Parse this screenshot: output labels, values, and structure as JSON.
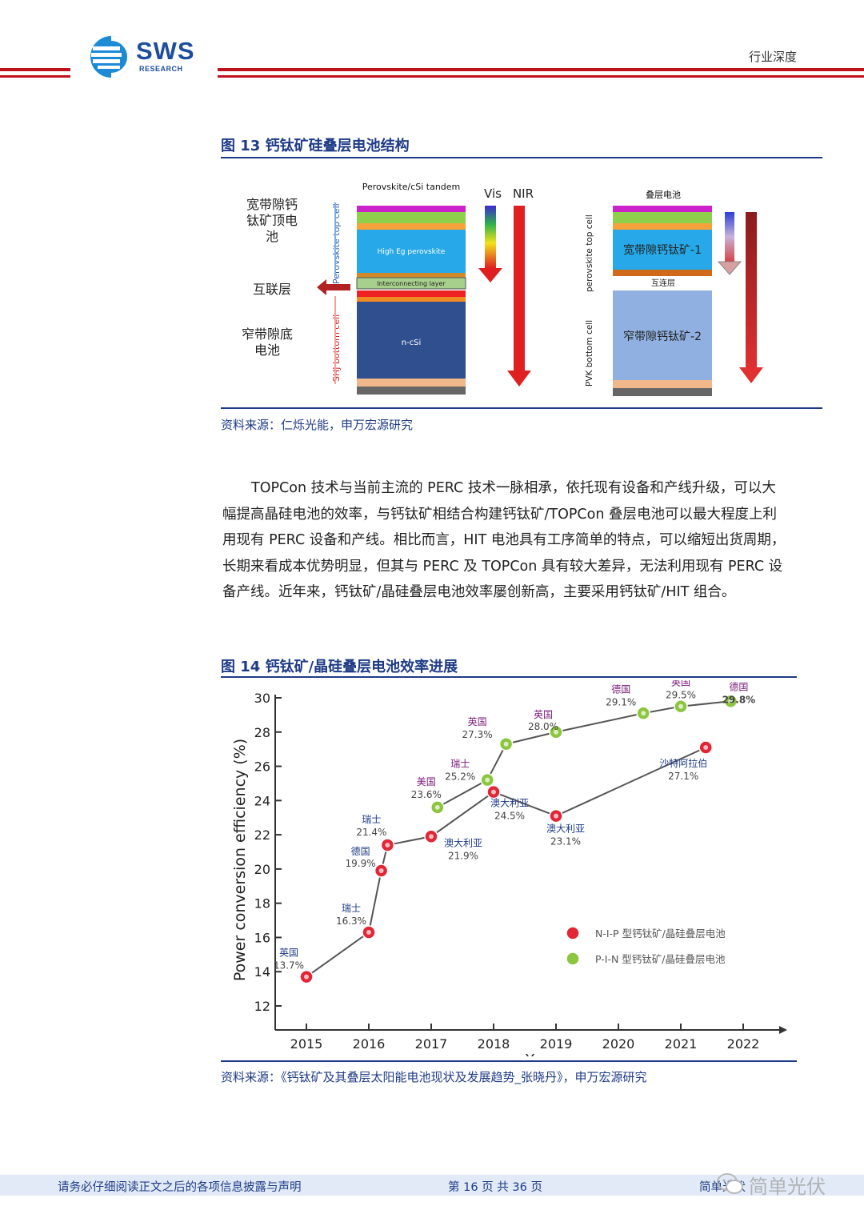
{
  "header": {
    "logo_text": "SWS",
    "logo_sub": "RESEARCH",
    "category": "行业深度"
  },
  "figure13": {
    "title": "图 13  钙钛矿硅叠层电池结构",
    "left": {
      "heading": "Perovskite/cSi tandem",
      "label_top": "宽带隙钙钛矿顶电池",
      "label_top_l1": "宽带隙钙",
      "label_top_l2": "钛矿顶电",
      "label_top_l3": "池",
      "label_mid": "互联层",
      "label_bottom_l1": "窄带隙底",
      "label_bottom_l2": "电池",
      "side_top": "Perovskite top cell",
      "side_bottom": "SHJ bottom cell",
      "layer_top": "High Eg perovskite",
      "layer_mid": "Interconnecting layer",
      "layer_bottom": "n-cSi",
      "arrow_vis": "Vis",
      "arrow_nir": "NIR"
    },
    "right": {
      "heading": "叠层电池",
      "side_top": "perovskite top cell",
      "side_bottom": "PVK bottom cell",
      "layer_top": "宽带隙钙钛矿-1",
      "layer_mid": "互连层",
      "layer_bottom": "窄带隙钙钛矿-2"
    },
    "source": "资料来源：仁烁光能，申万宏源研究"
  },
  "paragraph": {
    "line1": "TOPCon 技术与当前主流的 PERC 技术一脉相承，依托现有设备和产线升级，可以大",
    "line2": "幅提高晶硅电池的效率，与钙钛矿相结合构建钙钛矿/TOPCon 叠层电池可以最大程度上利",
    "line3": "用现有 PERC 设备和产线。相比而言，HIT 电池具有工序简单的特点，可以缩短出货周期，",
    "line4": "长期来看成本优势明显，但其与 PERC 及 TOPCon 具有较大差异，无法利用现有 PERC 设",
    "line5": "备产线。近年来，钙钛矿/晶硅叠层电池效率屡创新高，主要采用钙钛矿/HIT 组合。"
  },
  "figure14": {
    "title": "图 14  钙钛矿/晶硅叠层电池效率进展",
    "source": "资料来源：《钙钛矿及其叠层太阳能电池现状及发展趋势_张晓丹》，申万宏源研究"
  },
  "chart_data": {
    "type": "line",
    "xlabel": "Year",
    "ylabel": "Power conversion efficiency (%)",
    "xlim": [
      2014.5,
      2022.5
    ],
    "ylim": [
      12,
      30
    ],
    "x_ticks": [
      2015,
      2016,
      2017,
      2018,
      2019,
      2020,
      2021,
      2022
    ],
    "y_ticks": [
      12,
      14,
      16,
      18,
      20,
      22,
      24,
      26,
      28,
      30
    ],
    "legend": [
      "N-I-P 型钙钛矿/晶硅叠层电池",
      "P-I-N 型钙钛矿/晶硅叠层电池"
    ],
    "series": [
      {
        "name": "N-I-P 型钙钛矿/晶硅叠层电池",
        "color": "#e32636",
        "points": [
          {
            "x": 2015.0,
            "y": 13.7,
            "label": "13.7%",
            "country": "英国"
          },
          {
            "x": 2016.0,
            "y": 16.3,
            "label": "16.3%",
            "country": "瑞士"
          },
          {
            "x": 2016.2,
            "y": 19.9,
            "label": "19.9%",
            "country": "德国"
          },
          {
            "x": 2016.3,
            "y": 21.4,
            "label": "21.4%",
            "country": "瑞士"
          },
          {
            "x": 2017.0,
            "y": 21.9,
            "label": "21.9%",
            "country": "澳大利亚"
          },
          {
            "x": 2018.0,
            "y": 24.5,
            "label": "24.5%",
            "country": "澳大利亚"
          },
          {
            "x": 2019.0,
            "y": 23.1,
            "label": "23.1%",
            "country": "澳大利亚"
          },
          {
            "x": 2021.4,
            "y": 27.1,
            "label": "27.1%",
            "country": "沙特阿拉伯"
          }
        ]
      },
      {
        "name": "P-I-N 型钙钛矿/晶硅叠层电池",
        "color": "#8cc63f",
        "points": [
          {
            "x": 2017.1,
            "y": 23.6,
            "label": "23.6%",
            "country": "美国"
          },
          {
            "x": 2017.9,
            "y": 25.2,
            "label": "25.2%",
            "country": "瑞士"
          },
          {
            "x": 2018.2,
            "y": 27.3,
            "label": "27.3%",
            "country": "英国"
          },
          {
            "x": 2019.0,
            "y": 28.0,
            "label": "28.0%",
            "country": "英国"
          },
          {
            "x": 2020.4,
            "y": 29.1,
            "label": "29.1%",
            "country": "德国"
          },
          {
            "x": 2021.0,
            "y": 29.5,
            "label": "29.5%",
            "country": "英国"
          },
          {
            "x": 2021.8,
            "y": 29.8,
            "label": "29.8%",
            "country": "德国"
          }
        ]
      }
    ]
  },
  "footer": {
    "disclaimer": "请务必仔细阅读正文之后的各项信息披露与声明",
    "page": "第 16 页 共 36 页",
    "watermark": "简单光伏",
    "right_text": "简单光伏"
  },
  "colors": {
    "brand_red": "#c0121c",
    "brand_blue": "#1f3b86",
    "footer_bg": "#e1eaf6"
  }
}
